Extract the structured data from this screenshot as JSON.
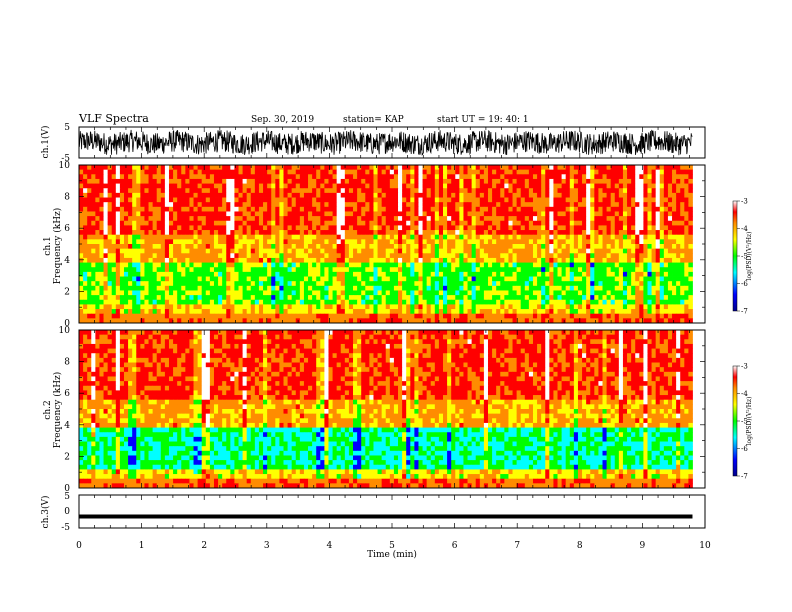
{
  "header": {
    "title": "VLF Spectra",
    "date": "Sep. 30, 2019",
    "station": "station= KAP",
    "start": "start  UT  =   19: 40: 1"
  },
  "colors": {
    "spectrum_scale": [
      "#00008b",
      "#0000ff",
      "#00ffff",
      "#00ff00",
      "#ffff00",
      "#ff8c00",
      "#ff0000",
      "#ffffff"
    ],
    "waveform": "#000000"
  },
  "chart_data": [
    {
      "type": "line",
      "name": "ch1-waveform",
      "ylabel": "ch.1(V)",
      "ylim": [
        -5,
        5
      ],
      "yticks": [
        "5",
        "-5"
      ],
      "xlim": [
        0,
        10
      ],
      "description_of_signal": "dense noisy waveform spanning about ±4 V over 0–9.8 min"
    },
    {
      "type": "heatmap",
      "name": "ch1-spectrogram",
      "ylabel": "Frequency  (kHz)",
      "ylabel_prefix": "ch.1",
      "ylim": [
        0,
        10
      ],
      "yticks": [
        "0",
        "2",
        "4",
        "6",
        "8",
        "10"
      ],
      "xlim": [
        0,
        10
      ],
      "data_end_min": 9.8,
      "colorbar": {
        "label": "log(PSD)(V²/Hz)",
        "range": [
          -7,
          -3
        ],
        "ticks": [
          "-3",
          "-4",
          "-5",
          "-6",
          "-7"
        ]
      }
    },
    {
      "type": "heatmap",
      "name": "ch2-spectrogram",
      "ylabel": "Frequency  (kHz)",
      "ylabel_prefix": "ch.2",
      "ylim": [
        0,
        10
      ],
      "yticks": [
        "0",
        "2",
        "4",
        "6",
        "8",
        "10"
      ],
      "xlim": [
        0,
        10
      ],
      "data_end_min": 9.8,
      "colorbar": {
        "label": "log(PSD)(V²/Hz)",
        "range": [
          -7,
          -3
        ],
        "ticks": [
          "-3",
          "-4",
          "-5",
          "-6",
          "-7"
        ]
      }
    },
    {
      "type": "line",
      "name": "ch3-waveform",
      "ylabel": "ch.3(V)",
      "ylim": [
        -5,
        5
      ],
      "yticks": [
        "5",
        "0",
        "-5"
      ],
      "xlim": [
        0,
        10
      ],
      "constant_value": -1.5
    }
  ],
  "x_axis": {
    "label": "Time  (min)",
    "ticks": [
      "0",
      "1",
      "2",
      "3",
      "4",
      "5",
      "6",
      "7",
      "8",
      "9",
      "10"
    ]
  }
}
